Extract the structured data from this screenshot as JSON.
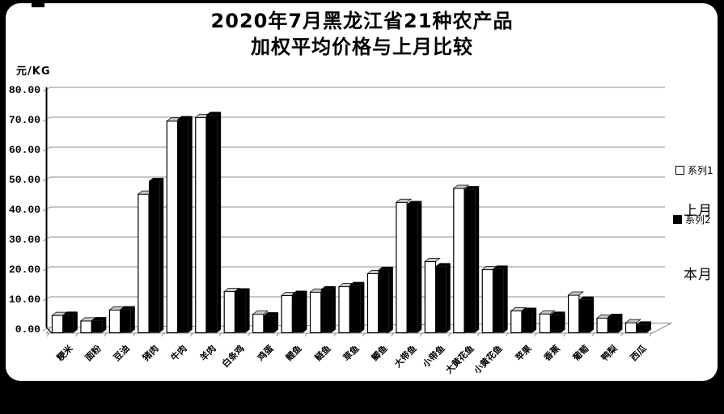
{
  "title_line1": "2020年7月黑龙江省21种农产品",
  "title_line2": "加权平均价格与上月比较",
  "y_axis_unit": "元/KG",
  "legend": {
    "series1_label": "系列1",
    "series2_label": "系列2",
    "annotation_last_month": "上月",
    "annotation_this_month": "本月"
  },
  "chart_data": {
    "type": "bar",
    "style": "3d-clustered-column",
    "title": "2020年7月黑龙江省21种农产品加权平均价格与上月比较",
    "ylabel": "元/KG",
    "ylim": [
      0,
      80
    ],
    "ytick_step": 10,
    "ytick_labels": [
      "0.00",
      "10.00",
      "20.00",
      "30.00",
      "40.00",
      "50.00",
      "60.00",
      "70.00",
      "80.00"
    ],
    "grid": true,
    "legend_position": "right",
    "categories": [
      "粳米",
      "面粉",
      "豆油",
      "猪肉",
      "牛肉",
      "羊肉",
      "白条鸡",
      "鸡蛋",
      "鲤鱼",
      "鲢鱼",
      "草鱼",
      "鲫鱼",
      "大带鱼",
      "小带鱼",
      "大黄花鱼",
      "小黄花鱼",
      "苹果",
      "香蕉",
      "葡萄",
      "鸭梨",
      "西瓜"
    ],
    "series": [
      {
        "name": "系列1",
        "meaning": "上月",
        "color": "#ffffff",
        "values": [
          5.7,
          3.9,
          7.5,
          45.7,
          69.8,
          71.0,
          13.6,
          6.1,
          12.3,
          13.4,
          15.2,
          19.5,
          43.0,
          23.5,
          47.6,
          20.8,
          7.2,
          6.2,
          12.4,
          4.8,
          3.3
        ]
      },
      {
        "name": "系列2",
        "meaning": "本月",
        "color": "#000000",
        "values": [
          5.9,
          4.1,
          7.7,
          50.0,
          70.4,
          71.8,
          13.6,
          5.7,
          12.8,
          14.3,
          15.7,
          20.7,
          42.4,
          21.9,
          47.3,
          21.1,
          7.2,
          5.9,
          10.9,
          5.2,
          2.7
        ]
      }
    ]
  },
  "colors": {
    "background": "#000000",
    "card": "#ffffff",
    "gridline": "#8c8c8c",
    "axis": "#000000",
    "bar_top_cap": "#c8c8c8"
  }
}
